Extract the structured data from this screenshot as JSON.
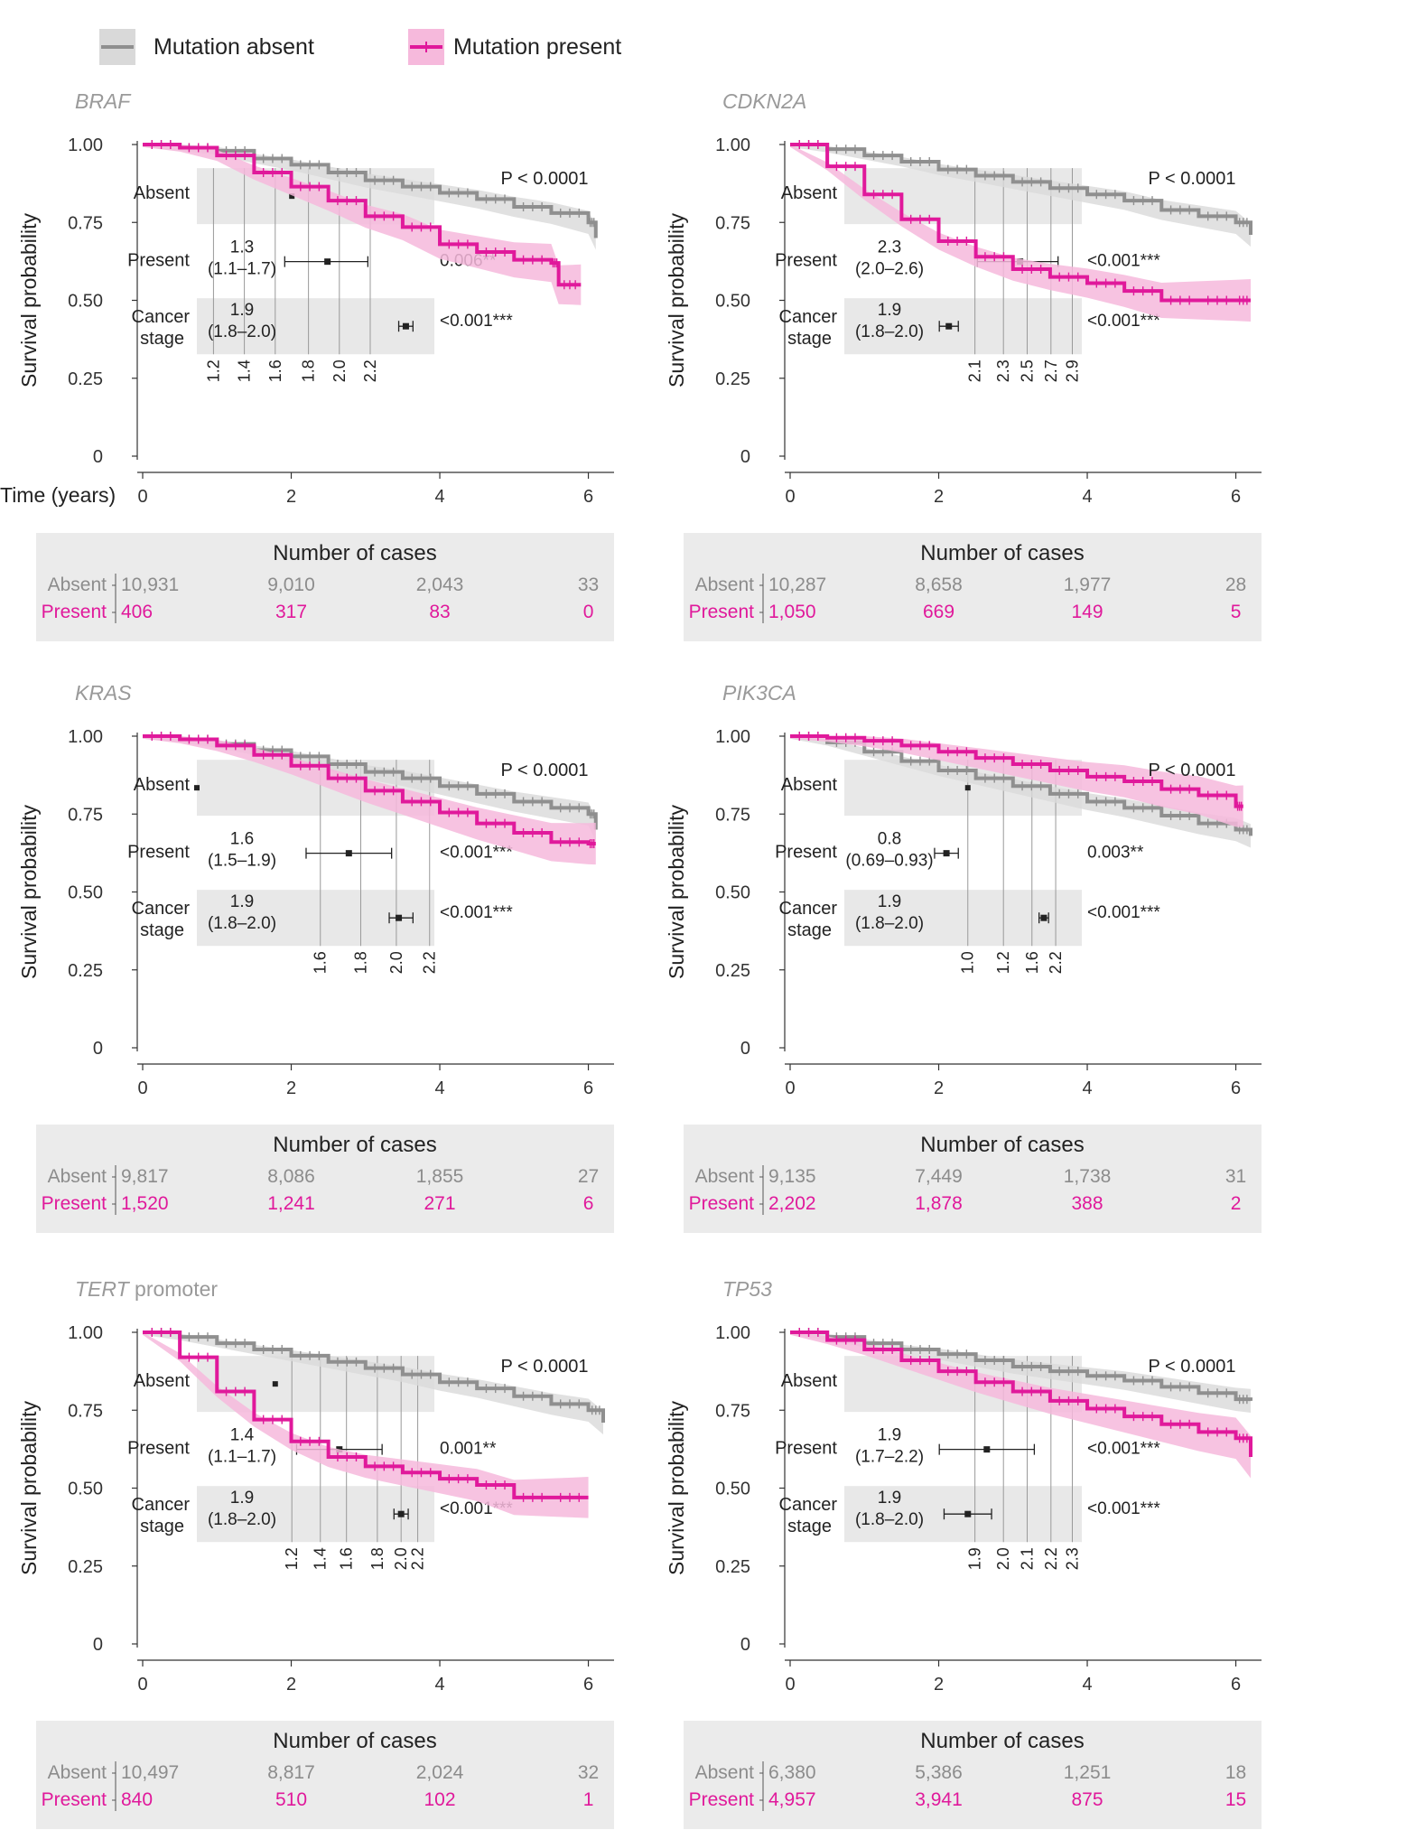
{
  "colors": {
    "absent": "#8f8f8f",
    "present": "#e0199b",
    "absent_band": "#d9d9d9",
    "present_band": "#f6b9dc",
    "table_bg": "#ebebeb",
    "forest_bg": "#e8e8e8"
  },
  "legend": {
    "absent_label": "Mutation absent",
    "present_label": "Mutation present"
  },
  "axis": {
    "ylabel": "Survival probability",
    "xlabel": "Time (years)",
    "y_ticks": [
      "1.00",
      "0.75",
      "0.50",
      "0.25",
      "0"
    ],
    "x_ticks": [
      "0",
      "2",
      "4",
      "6"
    ]
  },
  "table_labels": {
    "title": "Number of cases",
    "absent": "Absent",
    "present": "Present"
  },
  "forest_labels": {
    "absent": "Absent",
    "present": "Present",
    "stage_line1": "Cancer",
    "stage_line2": "stage"
  },
  "chart_data": [
    {
      "type": "line",
      "gene": "BRAF",
      "gene_suffix": "",
      "pvalue": "P < 0.0001",
      "xlim": [
        0,
        6.2
      ],
      "ylim": [
        0,
        1
      ],
      "series": [
        {
          "name": "Mutation absent",
          "x": [
            0,
            0.5,
            1,
            1.5,
            2,
            2.5,
            3,
            3.5,
            4,
            4.5,
            5,
            5.5,
            6,
            6.1
          ],
          "y": [
            1,
            0.99,
            0.98,
            0.955,
            0.935,
            0.91,
            0.885,
            0.865,
            0.845,
            0.825,
            0.8,
            0.78,
            0.75,
            0.7
          ]
        },
        {
          "name": "Mutation present",
          "x": [
            0,
            0.5,
            1,
            1.5,
            2,
            2.5,
            3,
            3.5,
            4,
            4.5,
            5,
            5.5,
            5.6,
            5.9
          ],
          "y": [
            1,
            0.99,
            0.965,
            0.91,
            0.865,
            0.82,
            0.77,
            0.735,
            0.68,
            0.655,
            0.63,
            0.62,
            0.55,
            0.55
          ]
        }
      ],
      "forest": {
        "ticks": [
          "1.2",
          "1.4",
          "1.6",
          "1.8",
          "2.0",
          "2.2"
        ],
        "present_hr": "1.3",
        "present_ci": "(1.1–1.7)",
        "present_p": "0.006**",
        "stage_hr": "1.9",
        "stage_ci": "(1.8–2.0)",
        "stage_p": "<0.001***"
      },
      "table": {
        "absent": [
          "10,931",
          "9,010",
          "2,043",
          "33"
        ],
        "present": [
          "406",
          "317",
          "83",
          "0"
        ]
      }
    },
    {
      "type": "line",
      "gene": "CDKN2A",
      "gene_suffix": "",
      "pvalue": "P < 0.0001",
      "xlim": [
        0,
        6.2
      ],
      "ylim": [
        0,
        1
      ],
      "series": [
        {
          "name": "Mutation absent",
          "x": [
            0,
            0.5,
            1,
            1.5,
            2,
            2.5,
            3,
            3.5,
            4,
            4.5,
            5,
            5.5,
            6,
            6.2
          ],
          "y": [
            1,
            0.985,
            0.965,
            0.945,
            0.92,
            0.9,
            0.88,
            0.86,
            0.84,
            0.82,
            0.79,
            0.77,
            0.75,
            0.71
          ]
        },
        {
          "name": "Mutation present",
          "x": [
            0,
            0.5,
            1,
            1.5,
            2,
            2.5,
            3,
            3.5,
            4,
            4.5,
            5,
            5.5,
            6,
            6.2
          ],
          "y": [
            1,
            0.93,
            0.84,
            0.76,
            0.69,
            0.64,
            0.6,
            0.575,
            0.555,
            0.53,
            0.5,
            0.5,
            0.5,
            0.5
          ]
        }
      ],
      "forest": {
        "ticks": [
          "2.1",
          "2.3",
          "2.5",
          "2.7",
          "2.9"
        ],
        "present_hr": "2.3",
        "present_ci": "(2.0–2.6)",
        "present_p": "<0.001***",
        "stage_hr": "1.9",
        "stage_ci": "(1.8–2.0)",
        "stage_p": "<0.001***"
      },
      "table": {
        "absent": [
          "10,287",
          "8,658",
          "1,977",
          "28"
        ],
        "present": [
          "1,050",
          "669",
          "149",
          "5"
        ]
      }
    },
    {
      "type": "line",
      "gene": "KRAS",
      "gene_suffix": "",
      "pvalue": "P < 0.0001",
      "xlim": [
        0,
        6.2
      ],
      "ylim": [
        0,
        1
      ],
      "series": [
        {
          "name": "Mutation absent",
          "x": [
            0,
            0.5,
            1,
            1.5,
            2,
            2.5,
            3,
            3.5,
            4,
            4.5,
            5,
            5.5,
            6,
            6.1
          ],
          "y": [
            1,
            0.99,
            0.975,
            0.955,
            0.935,
            0.91,
            0.885,
            0.865,
            0.84,
            0.815,
            0.79,
            0.77,
            0.75,
            0.7
          ]
        },
        {
          "name": "Mutation present",
          "x": [
            0,
            0.5,
            1,
            1.5,
            2,
            2.5,
            3,
            3.5,
            4,
            4.5,
            5,
            5.5,
            6,
            6.1
          ],
          "y": [
            1,
            0.99,
            0.97,
            0.94,
            0.905,
            0.865,
            0.825,
            0.79,
            0.755,
            0.72,
            0.69,
            0.66,
            0.655,
            0.655
          ]
        }
      ],
      "forest": {
        "ticks": [
          "1.6",
          "1.8",
          "2.0",
          "2.2"
        ],
        "present_hr": "1.6",
        "present_ci": "(1.5–1.9)",
        "present_p": "<0.001***",
        "stage_hr": "1.9",
        "stage_ci": "(1.8–2.0)",
        "stage_p": "<0.001***"
      },
      "table": {
        "absent": [
          "9,817",
          "8,086",
          "1,855",
          "27"
        ],
        "present": [
          "1,520",
          "1,241",
          "271",
          "6"
        ]
      }
    },
    {
      "type": "line",
      "gene": "PIK3CA",
      "gene_suffix": "",
      "pvalue": "P < 0.0001",
      "xlim": [
        0,
        6.2
      ],
      "ylim": [
        0,
        1
      ],
      "series": [
        {
          "name": "Mutation absent",
          "x": [
            0,
            0.5,
            1,
            1.5,
            2,
            2.5,
            3,
            3.5,
            4,
            4.5,
            5,
            5.5,
            6,
            6.2
          ],
          "y": [
            1,
            0.98,
            0.95,
            0.92,
            0.89,
            0.865,
            0.84,
            0.815,
            0.79,
            0.77,
            0.745,
            0.72,
            0.7,
            0.68
          ]
        },
        {
          "name": "Mutation present",
          "x": [
            0,
            0.5,
            1,
            1.5,
            2,
            2.5,
            3,
            3.5,
            4,
            4.5,
            5,
            5.5,
            6,
            6.1
          ],
          "y": [
            1,
            0.995,
            0.985,
            0.97,
            0.95,
            0.93,
            0.91,
            0.89,
            0.87,
            0.855,
            0.83,
            0.81,
            0.775,
            0.775
          ]
        }
      ],
      "forest": {
        "ticks": [
          "1.0",
          "1.2",
          "1.6",
          "2.2"
        ],
        "present_hr": "0.8",
        "present_ci": "(0.69–0.93)",
        "present_p": "0.003**",
        "stage_hr": "1.9",
        "stage_ci": "(1.8–2.0)",
        "stage_p": "<0.001***"
      },
      "table": {
        "absent": [
          "9,135",
          "7,449",
          "1,738",
          "31"
        ],
        "present": [
          "2,202",
          "1,878",
          "388",
          "2"
        ]
      }
    },
    {
      "type": "line",
      "gene": "TERT",
      "gene_suffix": " promoter",
      "pvalue": "P < 0.0001",
      "xlim": [
        0,
        6.2
      ],
      "ylim": [
        0,
        1
      ],
      "series": [
        {
          "name": "Mutation absent",
          "x": [
            0,
            0.5,
            1,
            1.5,
            2,
            2.5,
            3,
            3.5,
            4,
            4.5,
            5,
            5.5,
            6,
            6.2
          ],
          "y": [
            1,
            0.985,
            0.965,
            0.945,
            0.925,
            0.905,
            0.885,
            0.865,
            0.84,
            0.82,
            0.795,
            0.77,
            0.75,
            0.71
          ]
        },
        {
          "name": "Mutation present",
          "x": [
            0,
            0.5,
            1,
            1.5,
            2,
            2.5,
            3,
            3.5,
            4,
            4.5,
            5,
            5.5,
            6
          ],
          "y": [
            1,
            0.92,
            0.81,
            0.72,
            0.65,
            0.6,
            0.57,
            0.55,
            0.53,
            0.51,
            0.47,
            0.47,
            0.47
          ]
        }
      ],
      "forest": {
        "ticks": [
          "1.2",
          "1.4",
          "1.6",
          "1.8",
          "2.0",
          "2.2"
        ],
        "present_hr": "1.4",
        "present_ci": "(1.1–1.7)",
        "present_p": "0.001**",
        "stage_hr": "1.9",
        "stage_ci": "(1.8–2.0)",
        "stage_p": "<0.001***"
      },
      "table": {
        "absent": [
          "10,497",
          "8,817",
          "2,024",
          "32"
        ],
        "present": [
          "840",
          "510",
          "102",
          "1"
        ]
      }
    },
    {
      "type": "line",
      "gene": "TP53",
      "gene_suffix": "",
      "pvalue": "P < 0.0001",
      "xlim": [
        0,
        6.2
      ],
      "ylim": [
        0,
        1
      ],
      "series": [
        {
          "name": "Mutation absent",
          "x": [
            0,
            0.5,
            1,
            1.5,
            2,
            2.5,
            3,
            3.5,
            4,
            4.5,
            5,
            5.5,
            6,
            6.2
          ],
          "y": [
            1,
            0.985,
            0.965,
            0.945,
            0.93,
            0.91,
            0.89,
            0.875,
            0.86,
            0.845,
            0.825,
            0.805,
            0.785,
            0.78
          ]
        },
        {
          "name": "Mutation present",
          "x": [
            0,
            0.5,
            1,
            1.5,
            2,
            2.5,
            3,
            3.5,
            4,
            4.5,
            5,
            5.5,
            6,
            6.2
          ],
          "y": [
            1,
            0.975,
            0.945,
            0.91,
            0.875,
            0.84,
            0.81,
            0.78,
            0.755,
            0.73,
            0.705,
            0.68,
            0.66,
            0.6
          ]
        }
      ],
      "forest": {
        "ticks": [
          "1.9",
          "2.0",
          "2.1",
          "2.2",
          "2.3"
        ],
        "present_hr": "1.9",
        "present_ci": "(1.7–2.2)",
        "present_p": "<0.001***",
        "stage_hr": "1.9",
        "stage_ci": "(1.8–2.0)",
        "stage_p": "<0.001***"
      },
      "table": {
        "absent": [
          "6,380",
          "5,386",
          "1,251",
          "18"
        ],
        "present": [
          "4,957",
          "3,941",
          "875",
          "15"
        ]
      }
    }
  ]
}
